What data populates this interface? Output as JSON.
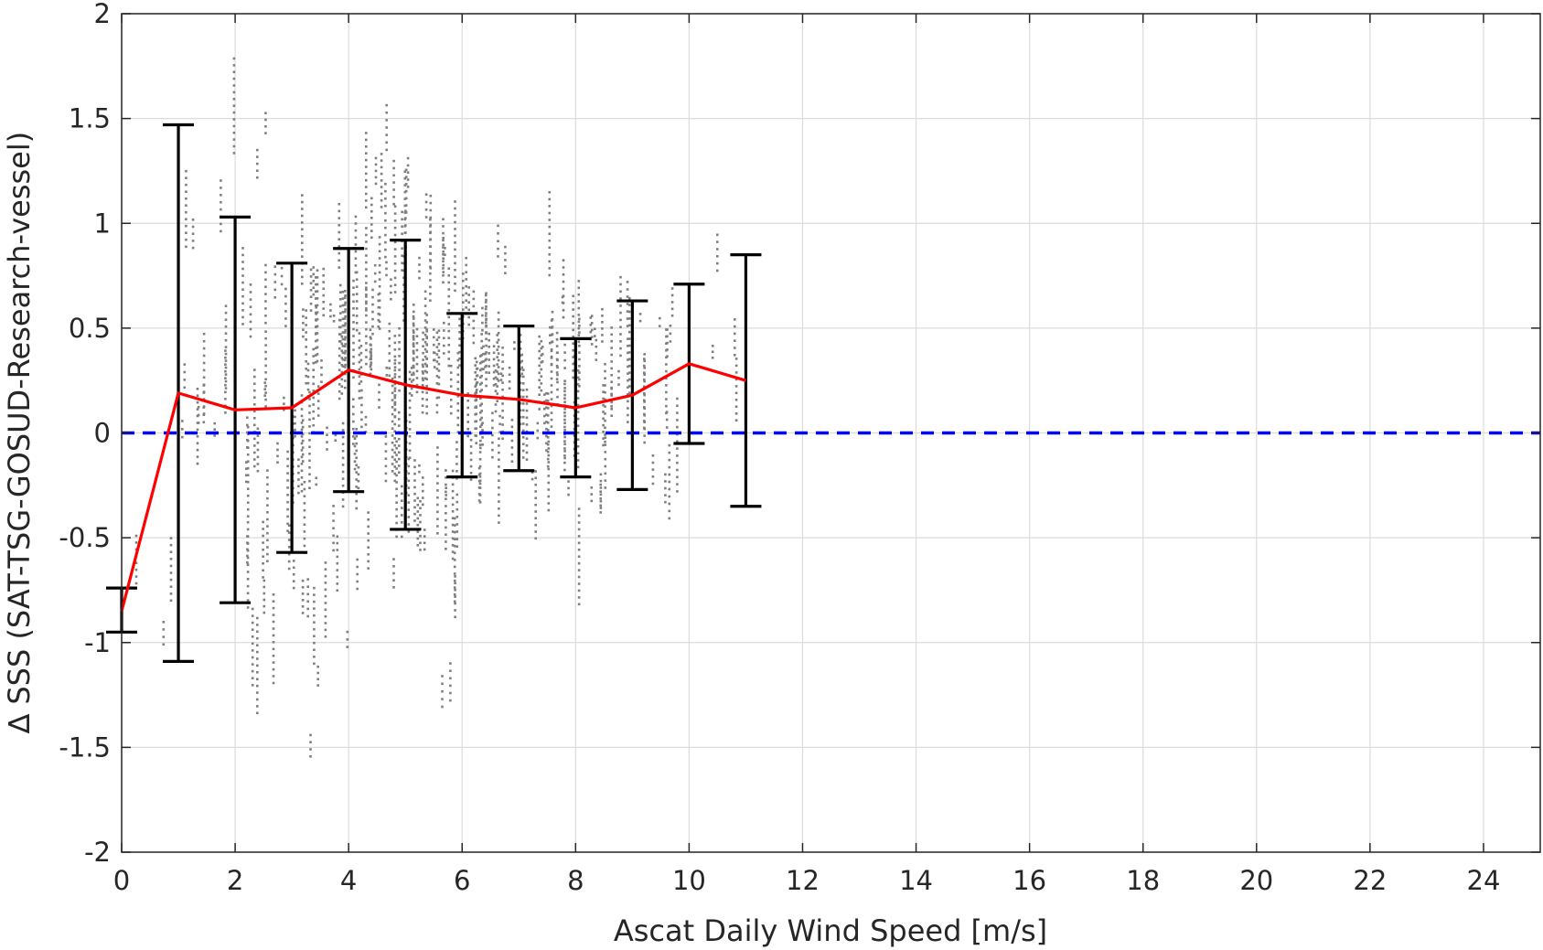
{
  "chart_data": {
    "type": "scatter",
    "title": "",
    "xlabel": "Ascat Daily Wind Speed [m/s]",
    "ylabel": "∆ SSS (SAT-TSG-GOSUD-Research-vessel)",
    "xlim": [
      0,
      25
    ],
    "ylim": [
      -2,
      2
    ],
    "xticks": [
      0,
      2,
      4,
      6,
      8,
      10,
      12,
      14,
      16,
      18,
      20,
      22,
      24
    ],
    "yticks": [
      -2,
      -1.5,
      -1,
      -0.5,
      0,
      0.5,
      1,
      1.5,
      2
    ],
    "grid": true,
    "legend": "none",
    "colors": {
      "scatter": "#7f7f7f",
      "mean_line": "#ff0000",
      "error_bars": "#000000",
      "zero_line": "#0000ff",
      "grid": "#dcdcdc",
      "axes": "#262626"
    },
    "zero_line": {
      "y": 0,
      "style": "dashed"
    },
    "binned_mean": {
      "x": [
        0,
        1,
        2,
        3,
        4,
        5,
        6,
        7,
        8,
        9,
        10,
        11
      ],
      "y": [
        -0.85,
        0.19,
        0.11,
        0.12,
        0.3,
        0.23,
        0.18,
        0.16,
        0.12,
        0.18,
        0.33,
        0.25
      ],
      "lower": [
        -0.95,
        -1.09,
        -0.81,
        -0.57,
        -0.28,
        -0.46,
        -0.21,
        -0.18,
        -0.21,
        -0.27,
        -0.05,
        -0.35
      ],
      "upper": [
        -0.74,
        1.47,
        1.03,
        0.81,
        0.88,
        0.92,
        0.57,
        0.51,
        0.45,
        0.63,
        0.71,
        0.85
      ]
    },
    "scatter_clusters": [
      {
        "x": [
          0.0,
          0.9
        ],
        "y_center": -0.65,
        "spread": 0.35,
        "density": 25
      },
      {
        "x": [
          1.0,
          2.0
        ],
        "y_center": 0.15,
        "spread": 0.75,
        "density": 160
      },
      {
        "x": [
          2.0,
          3.0
        ],
        "y_center": 0.1,
        "spread": 0.65,
        "density": 330
      },
      {
        "x": [
          3.0,
          4.0
        ],
        "y_center": 0.15,
        "spread": 0.55,
        "density": 500
      },
      {
        "x": [
          4.0,
          5.0
        ],
        "y_center": 0.25,
        "spread": 0.55,
        "density": 620
      },
      {
        "x": [
          5.0,
          6.0
        ],
        "y_center": 0.25,
        "spread": 0.5,
        "density": 560
      },
      {
        "x": [
          6.0,
          7.0
        ],
        "y_center": 0.2,
        "spread": 0.35,
        "density": 450
      },
      {
        "x": [
          7.0,
          8.0
        ],
        "y_center": 0.2,
        "spread": 0.3,
        "density": 360
      },
      {
        "x": [
          8.0,
          9.0
        ],
        "y_center": 0.2,
        "spread": 0.3,
        "density": 260
      },
      {
        "x": [
          9.0,
          10.0
        ],
        "y_center": 0.25,
        "spread": 0.3,
        "density": 150
      },
      {
        "x": [
          10.0,
          11.0
        ],
        "y_center": 0.3,
        "spread": 0.25,
        "density": 50
      }
    ]
  }
}
